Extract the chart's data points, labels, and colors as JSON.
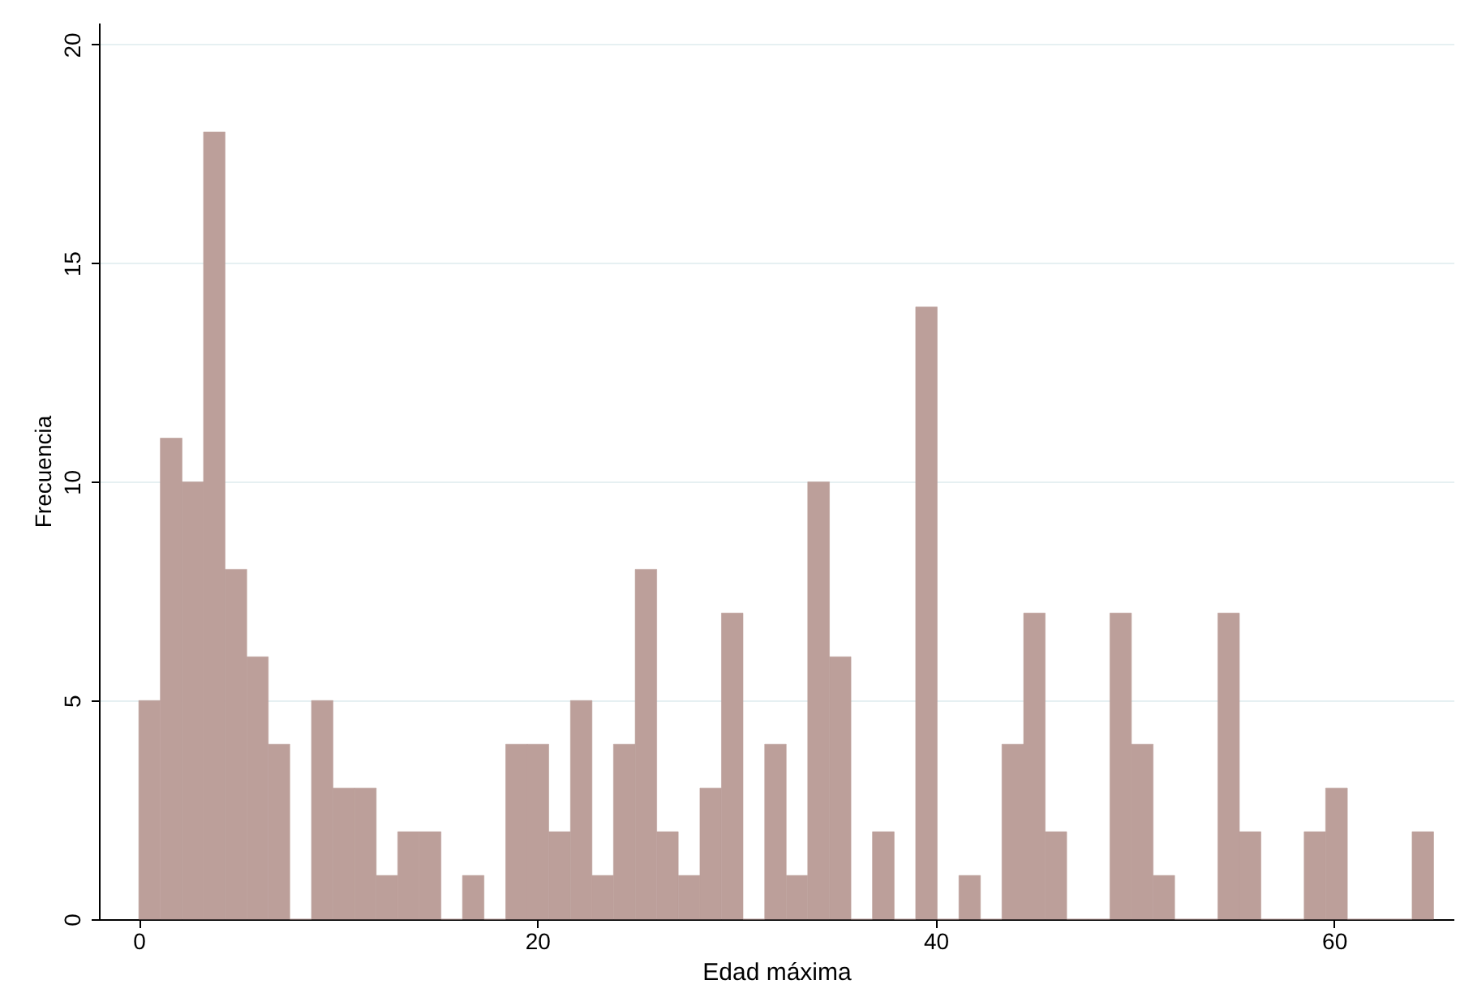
{
  "chart_data": {
    "type": "histogram",
    "xlabel": "Edad máxima",
    "ylabel": "Frecuencia",
    "color": "#bc9f9a",
    "bins": [
      0,
      1.08,
      2.17,
      3.25,
      4.33,
      5.42,
      6.5,
      7.58,
      8.67,
      9.75,
      10.83,
      11.92,
      13,
      14.08,
      15.17,
      16.25,
      17.33,
      18.42,
      19.5,
      20.58,
      21.67,
      22.75,
      23.83,
      24.92,
      26,
      27.08,
      28.17,
      29.25,
      30.33,
      31.42,
      32.5,
      33.58,
      34.67,
      35.75,
      36.83,
      37.92,
      39,
      40.08,
      41.17,
      42.25,
      43.33,
      44.42,
      45.5,
      46.58,
      47.67,
      48.75,
      49.83,
      50.92,
      52,
      53.08,
      54.17,
      55.25,
      56.33,
      57.42,
      58.5,
      59.58,
      60.67,
      61.75,
      62.83,
      63.92,
      65
    ],
    "values": [
      5,
      11,
      10,
      18,
      8,
      6,
      4,
      0,
      5,
      3,
      3,
      1,
      2,
      2,
      0,
      1,
      0,
      4,
      4,
      2,
      5,
      1,
      4,
      8,
      2,
      1,
      3,
      7,
      0,
      4,
      1,
      10,
      6,
      0,
      2,
      0,
      14,
      0,
      1,
      0,
      4,
      7,
      2,
      0,
      0,
      7,
      4,
      1,
      0,
      0,
      7,
      2,
      0,
      0,
      2,
      3,
      0,
      0,
      0,
      2
    ],
    "xlim": [
      -2,
      66
    ],
    "xticks": [
      0,
      20,
      40,
      60
    ],
    "ylim": [
      0,
      20.5
    ],
    "yticks": [
      0,
      5,
      10,
      15,
      20
    ],
    "grid": "y"
  }
}
